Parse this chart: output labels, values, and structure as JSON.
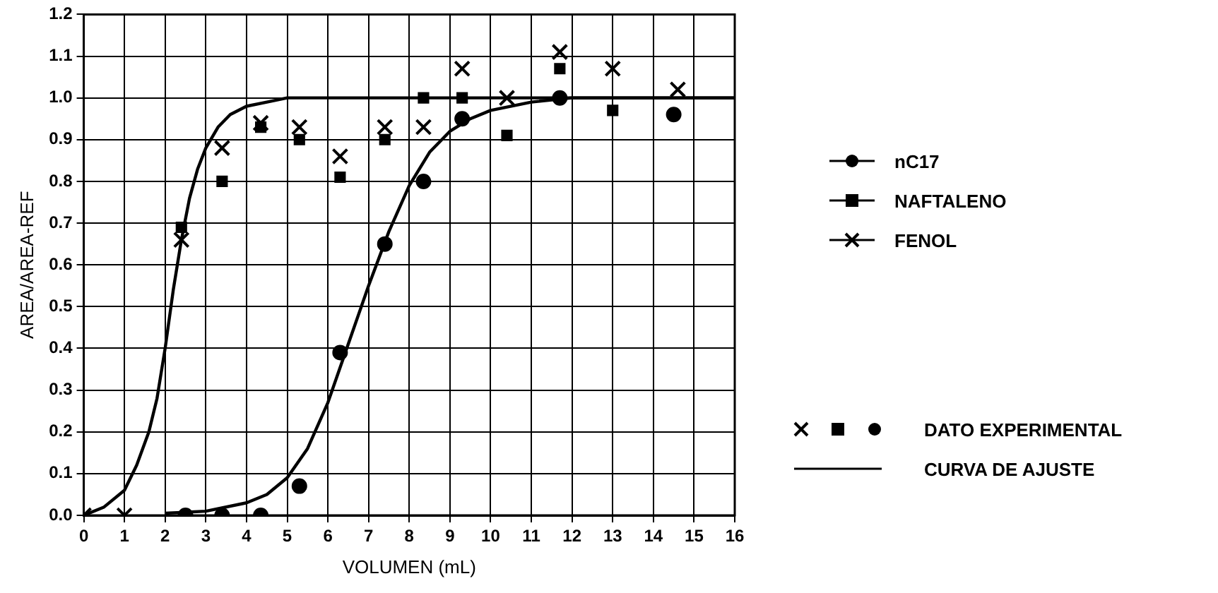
{
  "chart_data": {
    "type": "scatter",
    "xlabel": "VOLUMEN (mL)",
    "ylabel": "AREA/AREA-REF",
    "xlim": [
      0,
      16
    ],
    "xticks": [
      0,
      1,
      2,
      3,
      4,
      5,
      6,
      7,
      8,
      9,
      10,
      11,
      12,
      13,
      14,
      15,
      16
    ],
    "ylim": [
      0,
      1.2
    ],
    "yticks": [
      {
        "value": 0,
        "label": "0.0"
      },
      0.1,
      0.2,
      0.3,
      0.4,
      0.5,
      0.6,
      0.7,
      0.8,
      0.9,
      {
        "value": 1,
        "label": "1.0"
      },
      1.1,
      1.2
    ],
    "grid": true,
    "legend": "right",
    "annotations": [
      "DATO EXPERIMENTAL"
    ],
    "series": [
      {
        "name": "nC17",
        "marker": "circle",
        "color": "#000000",
        "x": [
          2.5,
          3.4,
          4.35,
          5.3,
          6.3,
          7.4,
          8.35,
          9.3,
          11.7,
          14.5
        ],
        "values": [
          0,
          0,
          0,
          0.07,
          0.39,
          0.65,
          0.8,
          0.95,
          1.0,
          0.96
        ]
      },
      {
        "name": "NAFTALENO",
        "marker": "square",
        "color": "#000000",
        "x": [
          2.4,
          3.4,
          4.35,
          5.3,
          6.3,
          7.4,
          8.35,
          9.3,
          10.4,
          11.7,
          13.0
        ],
        "values": [
          0.69,
          0.8,
          0.93,
          0.9,
          0.81,
          0.9,
          1.0,
          1.0,
          0.91,
          1.07,
          0.97
        ]
      },
      {
        "name": "FENOL",
        "marker": "cross",
        "color": "#000000",
        "x": [
          0,
          1,
          2.4,
          3.4,
          4.35,
          5.3,
          6.3,
          7.4,
          8.35,
          9.3,
          10.4,
          11.7,
          13.0,
          14.6
        ],
        "values": [
          0,
          0,
          0.66,
          0.88,
          0.94,
          0.93,
          0.86,
          0.93,
          0.93,
          1.07,
          1.0,
          1.11,
          1.07,
          1.02
        ]
      },
      {
        "name": "CURVA DE AJUSTE",
        "type": "line",
        "marker": "none",
        "color": "#000000",
        "x": [
          0,
          0.5,
          1,
          1.3,
          1.6,
          1.8,
          2,
          2.2,
          2.4,
          2.6,
          2.8,
          3,
          3.3,
          3.6,
          4,
          4.5,
          5,
          6,
          16
        ],
        "values": [
          0,
          0.02,
          0.06,
          0.12,
          0.2,
          0.28,
          0.4,
          0.54,
          0.66,
          0.76,
          0.83,
          0.88,
          0.93,
          0.96,
          0.98,
          0.99,
          1.0,
          1.0,
          1.0
        ]
      },
      {
        "type": "line",
        "marker": "none",
        "color": "#000000",
        "x": [
          2,
          3,
          4,
          4.5,
          5,
          5.5,
          6,
          6.5,
          7,
          7.5,
          8,
          8.5,
          9,
          9.5,
          10,
          11,
          12,
          16
        ],
        "values": [
          0.005,
          0.01,
          0.03,
          0.05,
          0.09,
          0.16,
          0.27,
          0.41,
          0.55,
          0.68,
          0.79,
          0.87,
          0.92,
          0.95,
          0.97,
          0.99,
          1.0,
          1.0
        ]
      }
    ]
  }
}
